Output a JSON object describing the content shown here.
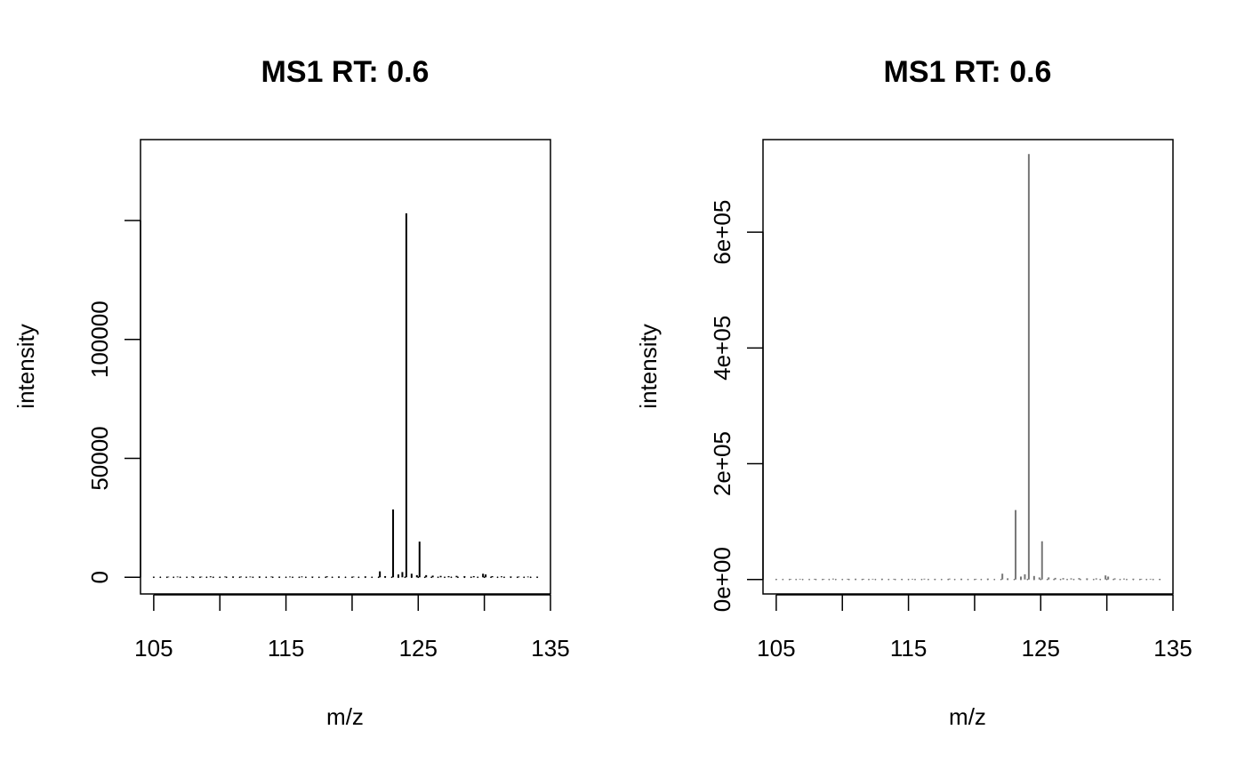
{
  "chart_data": [
    {
      "type": "spectrum",
      "title": "MS1 RT: 0.6",
      "xlabel": "m/z",
      "ylabel": "intensity",
      "xlim": [
        104,
        135
      ],
      "ylim": [
        -7000,
        184000
      ],
      "xticks": [
        105,
        110,
        115,
        120,
        125,
        130,
        135
      ],
      "xticklabels": [
        "105",
        "",
        "115",
        "",
        "125",
        "",
        "135"
      ],
      "yticks": [
        0,
        50000,
        100000,
        150000
      ],
      "yticklabels": [
        "0",
        "50000",
        "100000",
        ""
      ],
      "peak_color": "#000000",
      "peaks_x": [
        105.0,
        106.1,
        106.8,
        107.9,
        108.6,
        109.3,
        110.4,
        111.0,
        111.6,
        112.3,
        113.0,
        113.9,
        114.5,
        115.3,
        116.2,
        117.0,
        118.1,
        119.0,
        120.1,
        121.0,
        122.1,
        122.5,
        123.1,
        123.5,
        123.8,
        124.1,
        124.5,
        124.9,
        125.1,
        125.6,
        126.1,
        126.7,
        127.3,
        127.9,
        128.5,
        129.2,
        129.9,
        130.1,
        130.6,
        131.3,
        132.0,
        132.6,
        133.3,
        134.0
      ],
      "peaks_y": [
        200,
        250,
        300,
        300,
        250,
        400,
        300,
        350,
        300,
        300,
        350,
        300,
        250,
        300,
        350,
        300,
        400,
        350,
        300,
        400,
        2500,
        500,
        28500,
        1200,
        2200,
        153000,
        1500,
        900,
        15000,
        900,
        700,
        600,
        500,
        600,
        500,
        500,
        1500,
        1200,
        500,
        400,
        350,
        300,
        300,
        250
      ]
    },
    {
      "type": "spectrum",
      "title": "MS1 RT: 0.6",
      "xlabel": "m/z",
      "ylabel": "intensity",
      "xlim": [
        104,
        135
      ],
      "ylim": [
        -25000,
        760000
      ],
      "xticks": [
        105,
        110,
        115,
        120,
        125,
        130,
        135
      ],
      "xticklabels": [
        "105",
        "",
        "115",
        "",
        "125",
        "",
        "135"
      ],
      "yticks": [
        0,
        200000,
        400000,
        600000
      ],
      "yticklabels": [
        "0e+00",
        "2e+05",
        "4e+05",
        "6e+05"
      ],
      "peak_color": "#777777",
      "peaks_x": [
        105.0,
        106.1,
        106.8,
        107.9,
        108.6,
        109.3,
        110.4,
        111.0,
        111.6,
        112.3,
        113.0,
        113.9,
        114.5,
        115.3,
        116.2,
        117.0,
        118.1,
        119.0,
        120.1,
        121.0,
        122.1,
        122.5,
        123.1,
        123.5,
        123.8,
        124.1,
        124.5,
        124.9,
        125.1,
        125.6,
        126.1,
        126.7,
        127.3,
        127.9,
        128.5,
        129.2,
        129.9,
        130.1,
        130.6,
        131.3,
        132.0,
        132.6,
        133.3,
        134.0
      ],
      "peaks_y": [
        800,
        1000,
        1200,
        1200,
        1000,
        1600,
        1200,
        1400,
        1200,
        1200,
        1400,
        1200,
        1000,
        1200,
        1400,
        1200,
        1600,
        1400,
        1200,
        1600,
        10000,
        2000,
        120000,
        5000,
        9000,
        735000,
        6000,
        3500,
        66000,
        3600,
        2800,
        2400,
        2000,
        2400,
        2000,
        2000,
        7000,
        5000,
        2000,
        1600,
        1400,
        1200,
        1200,
        1000
      ]
    }
  ]
}
